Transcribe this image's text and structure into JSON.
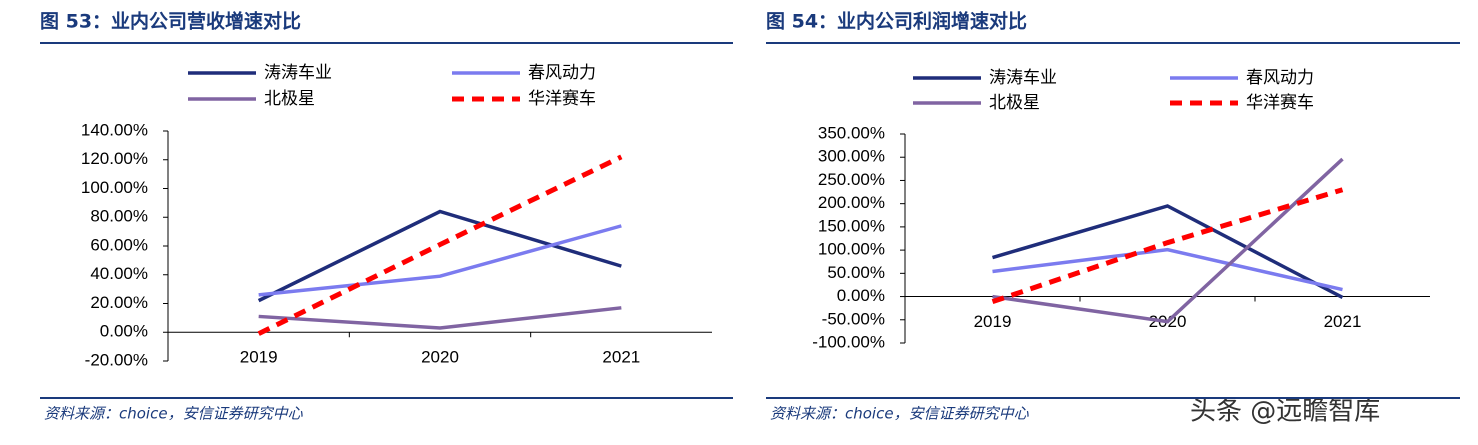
{
  "chart_data": [
    {
      "type": "line",
      "title": "图 53：业内公司营收增速对比",
      "source": "资料来源：choice，安信证券研究中心",
      "categories": [
        "2019",
        "2020",
        "2021"
      ],
      "series": [
        {
          "name": "涛涛车业",
          "color": "#1f2d7a",
          "style": "solid",
          "values": [
            22,
            84,
            46
          ]
        },
        {
          "name": "春风动力",
          "color": "#7b7bef",
          "style": "solid",
          "values": [
            26,
            39,
            74
          ]
        },
        {
          "name": "北极星",
          "color": "#8064a2",
          "style": "solid",
          "values": [
            11,
            3,
            17
          ]
        },
        {
          "name": "华洋赛车",
          "color": "#ff0000",
          "style": "dashed",
          "values": [
            -1,
            61,
            122
          ]
        }
      ],
      "ylim": [
        -20,
        140
      ],
      "yticks": [
        {
          "value": -20,
          "label": "-20.00%"
        },
        {
          "value": 0,
          "label": "0.00%"
        },
        {
          "value": 20,
          "label": "20.00%"
        },
        {
          "value": 40,
          "label": "40.00%"
        },
        {
          "value": 60,
          "label": "60.00%"
        },
        {
          "value": 80,
          "label": "80.00%"
        },
        {
          "value": 100,
          "label": "100.00%"
        },
        {
          "value": 120,
          "label": "120.00%"
        },
        {
          "value": 140,
          "label": "140.00%"
        }
      ],
      "grid": false
    },
    {
      "type": "line",
      "title": "图 54：业内公司利润增速对比",
      "source": "资料来源：choice，安信证券研究中心",
      "categories": [
        "2019",
        "2020",
        "2021"
      ],
      "series": [
        {
          "name": "涛涛车业",
          "color": "#1f2d7a",
          "style": "solid",
          "values": [
            84,
            195,
            -2
          ]
        },
        {
          "name": "春风动力",
          "color": "#7b7bef",
          "style": "solid",
          "values": [
            54,
            101,
            15
          ]
        },
        {
          "name": "北极星",
          "color": "#8064a2",
          "style": "solid",
          "values": [
            0,
            -54,
            296
          ]
        },
        {
          "name": "华洋赛车",
          "color": "#ff0000",
          "style": "dashed",
          "values": [
            -11,
            116,
            230
          ]
        }
      ],
      "ylim": [
        -100,
        350
      ],
      "yticks": [
        {
          "value": -100,
          "label": "-100.00%"
        },
        {
          "value": -50,
          "label": "-50.00%"
        },
        {
          "value": 0,
          "label": "0.00%"
        },
        {
          "value": 50,
          "label": "50.00%"
        },
        {
          "value": 100,
          "label": "100.00%"
        },
        {
          "value": 150,
          "label": "150.00%"
        },
        {
          "value": 200,
          "label": "200.00%"
        },
        {
          "value": 250,
          "label": "250.00%"
        },
        {
          "value": 300,
          "label": "300.00%"
        },
        {
          "value": 350,
          "label": "350.00%"
        }
      ],
      "grid": false
    }
  ],
  "watermark": "头条 @远瞻智库"
}
